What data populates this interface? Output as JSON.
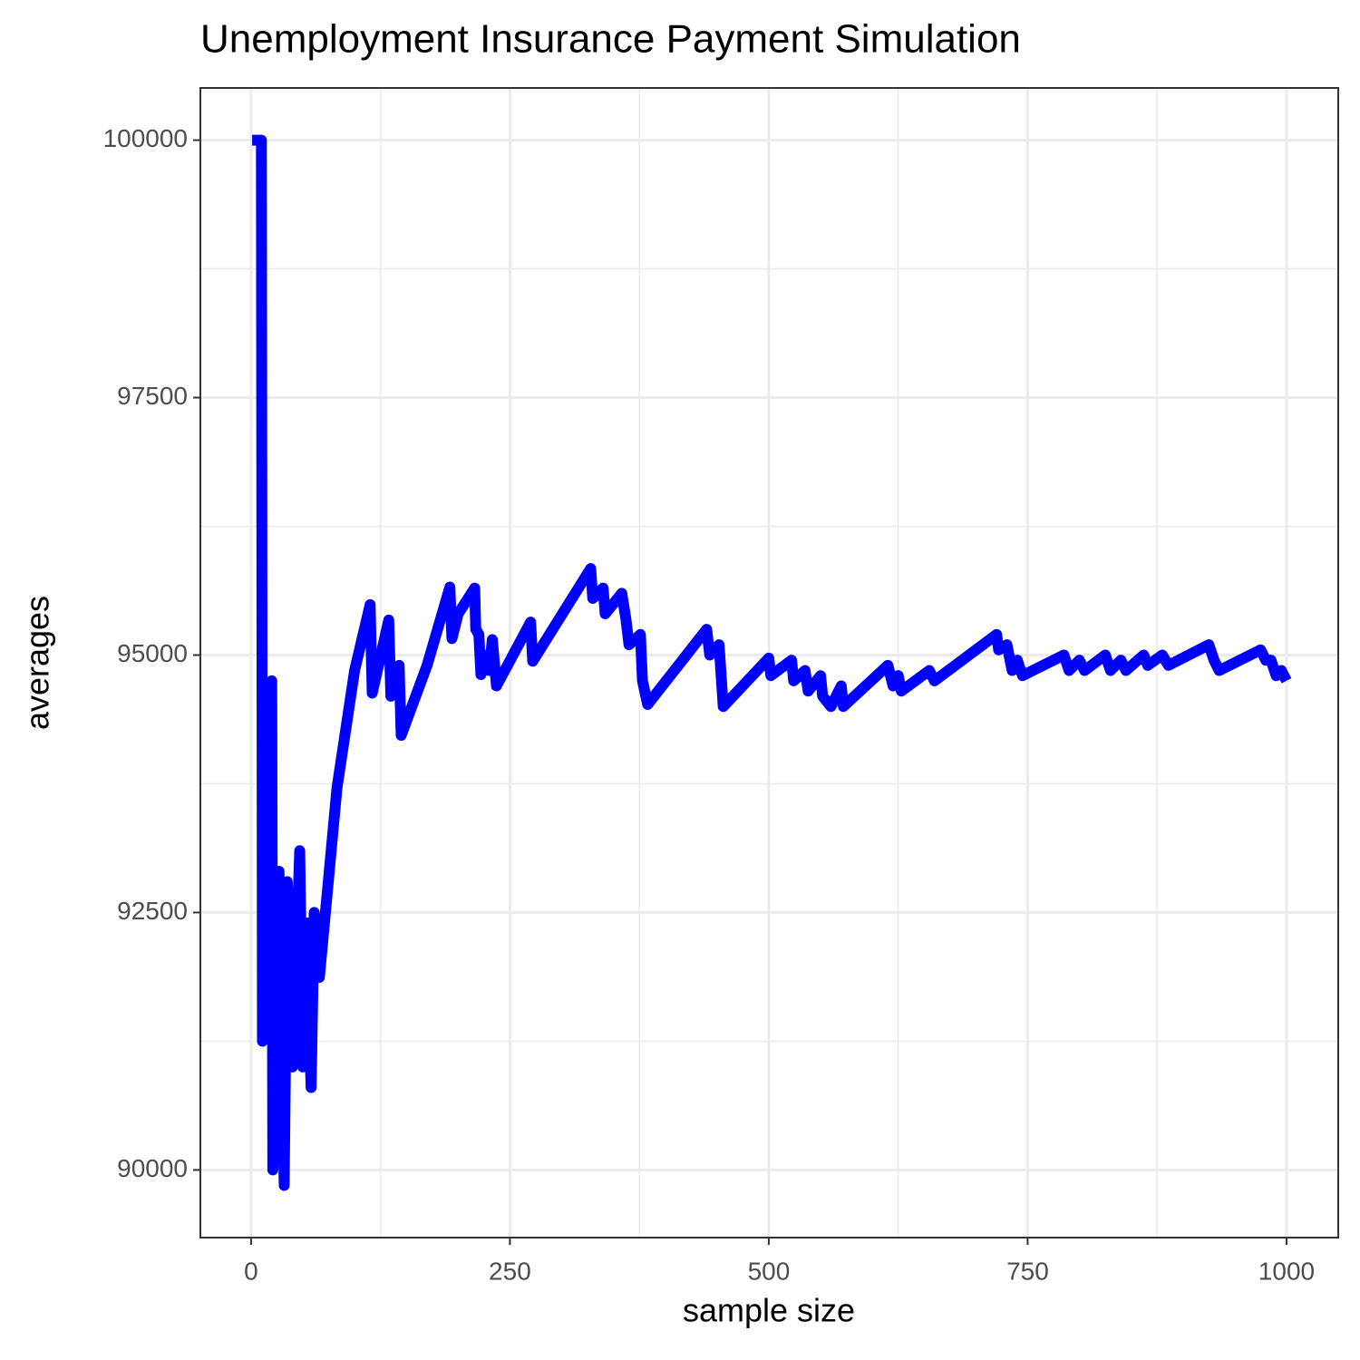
{
  "chart_data": {
    "type": "line",
    "title": "Unemployment Insurance Payment Simulation",
    "x_label": "sample size",
    "y_label": "averages",
    "x": [
      1,
      10,
      11,
      20,
      21,
      27,
      32,
      35,
      40,
      47,
      50,
      53,
      58,
      61,
      66,
      83,
      100,
      115,
      117,
      133,
      135,
      143,
      145,
      170,
      192,
      194,
      200,
      216,
      217,
      220,
      222,
      228,
      230,
      233,
      237,
      270,
      272,
      328,
      330,
      340,
      342,
      358,
      362,
      365,
      376,
      378,
      383,
      440,
      443,
      452,
      456,
      500,
      502,
      522,
      524,
      535,
      538,
      550,
      552,
      560,
      570,
      572,
      615,
      620,
      625,
      628,
      655,
      660,
      720,
      722,
      730,
      735,
      740,
      745,
      785,
      790,
      800,
      805,
      825,
      830,
      840,
      845,
      862,
      866,
      880,
      886,
      925,
      930,
      935,
      975,
      980,
      985,
      990,
      995,
      1000
    ],
    "values": [
      100000,
      100000,
      91250,
      94750,
      90000,
      92900,
      89850,
      92800,
      91000,
      93100,
      91000,
      92400,
      90800,
      92500,
      91870,
      93710,
      94850,
      95490,
      94630,
      95340,
      94600,
      94900,
      94220,
      94900,
      95660,
      95160,
      95400,
      95650,
      95250,
      95200,
      94810,
      95000,
      94850,
      95150,
      94700,
      95320,
      94940,
      95840,
      95550,
      95650,
      95400,
      95600,
      95350,
      95100,
      95200,
      94750,
      94520,
      95250,
      95000,
      95100,
      94500,
      94970,
      94800,
      94950,
      94750,
      94850,
      94650,
      94800,
      94600,
      94500,
      94700,
      94500,
      94900,
      94700,
      94800,
      94650,
      94850,
      94750,
      95200,
      95050,
      95100,
      94850,
      94950,
      94800,
      95000,
      94850,
      94950,
      94850,
      95000,
      94850,
      94950,
      94850,
      95000,
      94900,
      95000,
      94900,
      95100,
      94950,
      94850,
      95050,
      94950,
      94950,
      94800,
      94850,
      94750
    ],
    "color": "#0000ff",
    "xlim": [
      -48.95,
      1049.95
    ],
    "ylim": [
      89343,
      100507
    ],
    "xticks": [
      0,
      250,
      500,
      750,
      1000
    ],
    "yticks": [
      90000,
      92500,
      95000,
      97500,
      100000
    ],
    "x_minor": [
      125,
      375,
      625,
      875
    ],
    "y_minor": [
      91250,
      93750,
      96250,
      98750
    ],
    "grid": true
  }
}
